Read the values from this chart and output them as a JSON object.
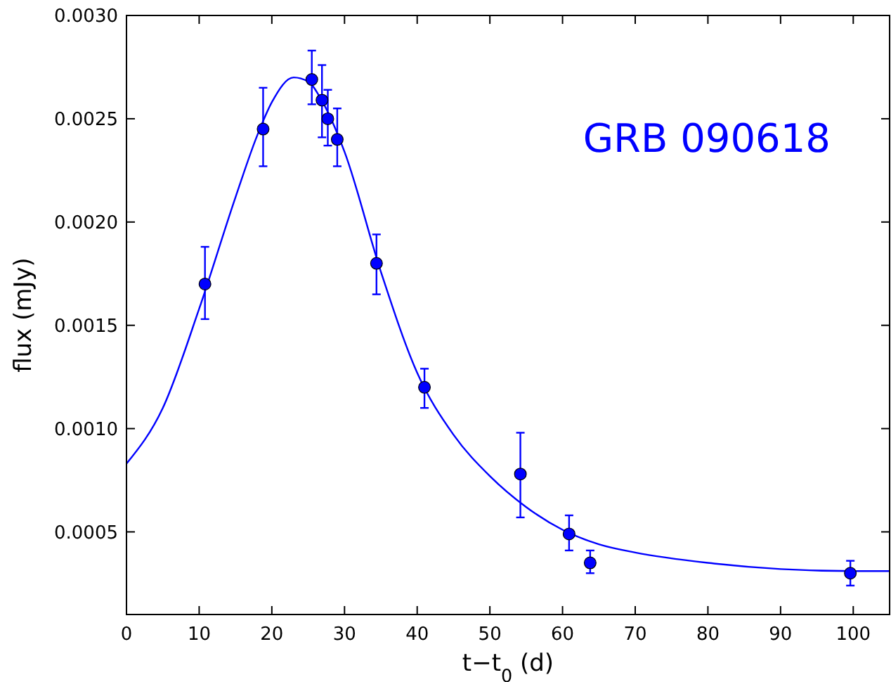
{
  "chart_data": {
    "type": "scatter",
    "xlabel": "t−t$_{0}$ (d)",
    "ylabel": "flux (mJy)",
    "annotations": [
      "GRB 090618"
    ],
    "xlim": [
      0,
      105
    ],
    "xticks": [
      0,
      10,
      20,
      30,
      40,
      50,
      60,
      70,
      80,
      90,
      100
    ],
    "ylim": [
      0.0001,
      0.003
    ],
    "yticks": [
      {
        "value": 0.0005,
        "label": "0.0005"
      },
      {
        "value": 0.001,
        "label": "0.0010"
      },
      {
        "value": 0.0015,
        "label": "0.0015"
      },
      {
        "value": 0.002,
        "label": "0.0020"
      },
      {
        "value": 0.0025,
        "label": "0.0025"
      },
      {
        "value": 0.003,
        "label": "0.0030"
      }
    ],
    "grid": false,
    "series": [
      {
        "type": "line",
        "color": "#0000ff",
        "marker": "none",
        "line_style": "solid",
        "x": [
          0,
          5,
          10,
          15,
          18,
          20,
          23,
          25,
          27,
          30,
          35,
          40,
          45,
          50,
          55,
          60,
          65,
          70,
          80,
          90,
          100,
          105
        ],
        "values": [
          0.00083,
          0.0011,
          0.00158,
          0.00212,
          0.00242,
          0.00258,
          0.0027,
          0.00268,
          0.00258,
          0.00234,
          0.00176,
          0.00127,
          0.00097,
          0.00077,
          0.00062,
          0.00051,
          0.00044,
          0.0004,
          0.00035,
          0.00032,
          0.00031,
          0.00031
        ]
      },
      {
        "color": "#0000ff",
        "marker": "circle",
        "x": [
          10.8,
          18.8,
          25.5,
          26.9,
          27.7,
          29,
          34.4,
          41,
          54.2,
          60.9,
          63.8,
          99.6
        ],
        "values": [
          0.0017,
          0.00245,
          0.00269,
          0.00259,
          0.0025,
          0.0024,
          0.0018,
          0.0012,
          0.00078,
          0.00049,
          0.00035,
          0.0003
        ],
        "errors": [
          [
            0.00153,
            0.00188
          ],
          [
            0.00227,
            0.00265
          ],
          [
            0.00257,
            0.00283
          ],
          [
            0.00241,
            0.00276
          ],
          [
            0.00237,
            0.00264
          ],
          [
            0.00227,
            0.00255
          ],
          [
            0.00165,
            0.00194
          ],
          [
            0.0011,
            0.00129
          ],
          [
            0.00057,
            0.00098
          ],
          [
            0.00041,
            0.00058
          ],
          [
            0.0003,
            0.00041
          ],
          [
            0.00024,
            0.00036
          ]
        ]
      }
    ]
  }
}
